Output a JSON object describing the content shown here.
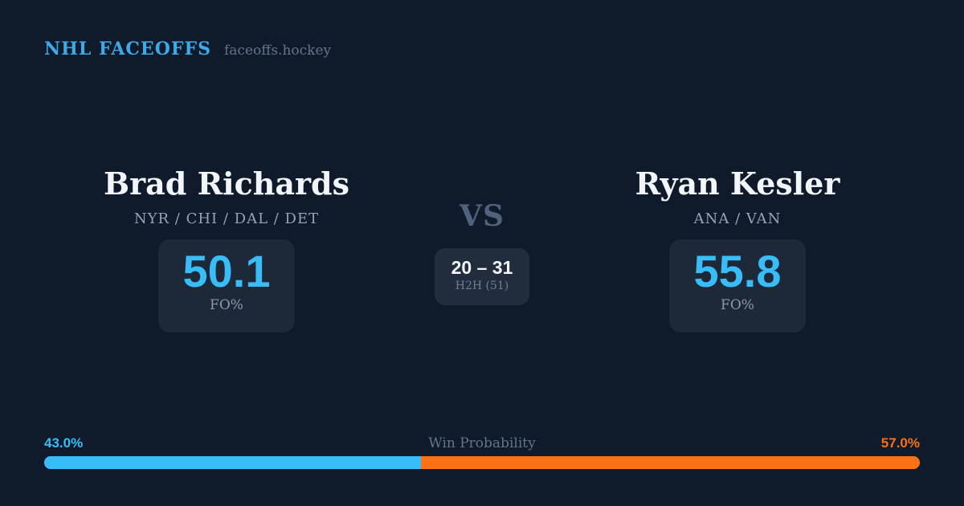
{
  "header": {
    "brand": "NHL FACEOFFS",
    "domain": "faceoffs.hockey"
  },
  "player_left": {
    "name": "Brad Richards",
    "teams": "NYR / CHI / DAL / DET",
    "stat_value": "50.1",
    "stat_label": "FO%"
  },
  "player_right": {
    "name": "Ryan Kesler",
    "teams": "ANA / VAN",
    "stat_value": "55.8",
    "stat_label": "FO%"
  },
  "center": {
    "vs_label": "VS",
    "h2h_score": "20 – 31",
    "h2h_label": "H2H (51)"
  },
  "win_probability": {
    "label": "Win Probability",
    "left_pct_text": "43.0%",
    "right_pct_text": "57.0%",
    "left_value": 43.0,
    "right_value": 57.0
  },
  "colors": {
    "background": "#0f1a2b",
    "card": "#1d2939",
    "accent_blue": "#38bdf8",
    "accent_orange": "#f97316",
    "brand_blue": "#3fa9e8",
    "muted": "#64748b",
    "text": "#f1f5f9",
    "teams_text": "#94a3b8"
  }
}
